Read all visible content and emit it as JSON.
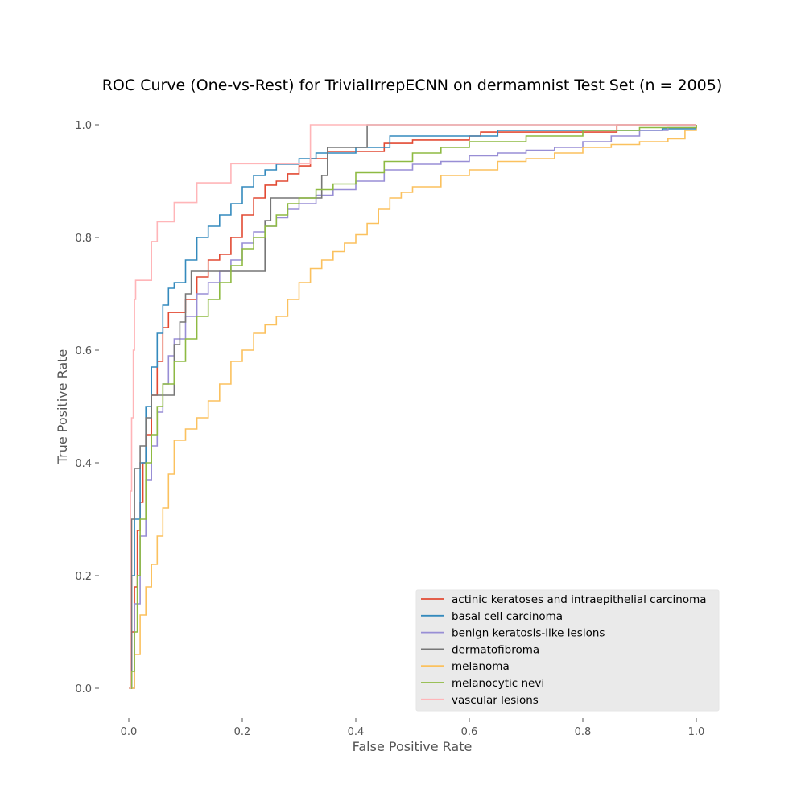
{
  "chart_data": {
    "type": "line",
    "title": "ROC Curve (One-vs-Rest) for TrivialIrrepECNN on dermamnist Test Set (n = 2005)",
    "xlabel": "False Positive Rate",
    "ylabel": "True Positive Rate",
    "xlim": [
      0.0,
      1.0
    ],
    "ylim": [
      0.0,
      1.0
    ],
    "xticks": [
      "0.0",
      "0.2",
      "0.4",
      "0.6",
      "0.8",
      "1.0"
    ],
    "yticks": [
      "0.0",
      "0.2",
      "0.4",
      "0.6",
      "0.8",
      "1.0"
    ],
    "grid": false,
    "legend_position": "lower-right",
    "series": [
      {
        "name": "actinic keratoses and intraepithelial carcinoma",
        "color": "#E24A33",
        "x": [
          0.0,
          0.005,
          0.01,
          0.015,
          0.02,
          0.025,
          0.03,
          0.04,
          0.05,
          0.06,
          0.07,
          0.09,
          0.1,
          0.12,
          0.14,
          0.16,
          0.18,
          0.2,
          0.22,
          0.24,
          0.26,
          0.28,
          0.3,
          0.32,
          0.35,
          0.4,
          0.45,
          0.5,
          0.6,
          0.62,
          0.7,
          0.86,
          0.86,
          1.0
        ],
        "y": [
          0.0,
          0.1,
          0.18,
          0.28,
          0.33,
          0.4,
          0.45,
          0.52,
          0.58,
          0.64,
          0.667,
          0.667,
          0.69,
          0.73,
          0.76,
          0.77,
          0.8,
          0.84,
          0.87,
          0.893,
          0.9,
          0.913,
          0.927,
          0.94,
          0.953,
          0.953,
          0.967,
          0.973,
          0.98,
          0.987,
          0.987,
          0.987,
          1.0,
          1.0
        ]
      },
      {
        "name": "basal cell carcinoma",
        "color": "#348ABD",
        "x": [
          0.0,
          0.005,
          0.01,
          0.02,
          0.03,
          0.04,
          0.05,
          0.06,
          0.07,
          0.08,
          0.1,
          0.12,
          0.14,
          0.16,
          0.18,
          0.2,
          0.22,
          0.24,
          0.26,
          0.3,
          0.33,
          0.4,
          0.46,
          0.65,
          0.86,
          0.94,
          1.0
        ],
        "y": [
          0.0,
          0.2,
          0.3,
          0.4,
          0.5,
          0.57,
          0.63,
          0.68,
          0.71,
          0.72,
          0.76,
          0.8,
          0.82,
          0.84,
          0.86,
          0.89,
          0.91,
          0.92,
          0.93,
          0.94,
          0.95,
          0.96,
          0.98,
          0.99,
          0.99,
          0.993,
          1.0
        ]
      },
      {
        "name": "benign keratosis-like lesions",
        "color": "#988ED5",
        "x": [
          0.0,
          0.01,
          0.02,
          0.03,
          0.04,
          0.05,
          0.06,
          0.07,
          0.08,
          0.1,
          0.12,
          0.14,
          0.16,
          0.18,
          0.2,
          0.22,
          0.24,
          0.26,
          0.28,
          0.3,
          0.33,
          0.36,
          0.4,
          0.45,
          0.5,
          0.55,
          0.6,
          0.65,
          0.7,
          0.75,
          0.8,
          0.85,
          0.9,
          0.95,
          1.0
        ],
        "y": [
          0.0,
          0.15,
          0.27,
          0.37,
          0.43,
          0.49,
          0.54,
          0.59,
          0.62,
          0.66,
          0.7,
          0.72,
          0.74,
          0.76,
          0.79,
          0.81,
          0.82,
          0.835,
          0.85,
          0.86,
          0.875,
          0.885,
          0.9,
          0.92,
          0.93,
          0.935,
          0.945,
          0.95,
          0.955,
          0.96,
          0.97,
          0.98,
          0.99,
          0.995,
          1.0
        ]
      },
      {
        "name": "dermatofibroma",
        "color": "#777777",
        "x": [
          0.0,
          0.005,
          0.01,
          0.02,
          0.03,
          0.04,
          0.06,
          0.08,
          0.09,
          0.1,
          0.11,
          0.23,
          0.24,
          0.25,
          0.3,
          0.33,
          0.34,
          0.35,
          0.42,
          0.42,
          1.0
        ],
        "y": [
          0.0,
          0.3,
          0.39,
          0.43,
          0.48,
          0.52,
          0.52,
          0.61,
          0.65,
          0.7,
          0.74,
          0.74,
          0.83,
          0.87,
          0.87,
          0.87,
          0.91,
          0.96,
          0.96,
          1.0,
          1.0
        ]
      },
      {
        "name": "melanoma",
        "color": "#FBC15E",
        "x": [
          0.0,
          0.01,
          0.02,
          0.03,
          0.04,
          0.05,
          0.06,
          0.07,
          0.08,
          0.1,
          0.12,
          0.14,
          0.16,
          0.18,
          0.2,
          0.22,
          0.24,
          0.26,
          0.28,
          0.3,
          0.32,
          0.34,
          0.36,
          0.38,
          0.4,
          0.42,
          0.44,
          0.46,
          0.48,
          0.5,
          0.55,
          0.6,
          0.65,
          0.7,
          0.75,
          0.8,
          0.85,
          0.9,
          0.95,
          0.98,
          1.0
        ],
        "y": [
          0.0,
          0.06,
          0.13,
          0.18,
          0.22,
          0.27,
          0.32,
          0.38,
          0.44,
          0.46,
          0.48,
          0.51,
          0.54,
          0.58,
          0.6,
          0.63,
          0.645,
          0.66,
          0.69,
          0.72,
          0.745,
          0.76,
          0.775,
          0.79,
          0.805,
          0.825,
          0.85,
          0.87,
          0.88,
          0.89,
          0.91,
          0.92,
          0.935,
          0.94,
          0.95,
          0.96,
          0.965,
          0.97,
          0.975,
          0.99,
          1.0
        ]
      },
      {
        "name": "melanocytic nevi",
        "color": "#8EBA42",
        "x": [
          0.0,
          0.005,
          0.01,
          0.015,
          0.02,
          0.03,
          0.04,
          0.05,
          0.06,
          0.08,
          0.1,
          0.12,
          0.14,
          0.16,
          0.18,
          0.2,
          0.22,
          0.24,
          0.26,
          0.28,
          0.3,
          0.33,
          0.36,
          0.4,
          0.45,
          0.5,
          0.55,
          0.6,
          0.7,
          0.8,
          0.9,
          1.0
        ],
        "y": [
          0.0,
          0.03,
          0.1,
          0.2,
          0.3,
          0.4,
          0.45,
          0.5,
          0.54,
          0.58,
          0.62,
          0.66,
          0.69,
          0.72,
          0.75,
          0.78,
          0.8,
          0.82,
          0.84,
          0.86,
          0.87,
          0.885,
          0.895,
          0.915,
          0.935,
          0.95,
          0.96,
          0.97,
          0.98,
          0.99,
          0.995,
          1.0
        ]
      },
      {
        "name": "vascular lesions",
        "color": "#FFB5B8",
        "x": [
          0.0,
          0.003,
          0.005,
          0.008,
          0.01,
          0.012,
          0.03,
          0.04,
          0.05,
          0.07,
          0.08,
          0.12,
          0.18,
          0.25,
          0.3,
          0.32,
          1.0
        ],
        "y": [
          0.0,
          0.35,
          0.48,
          0.6,
          0.69,
          0.724,
          0.724,
          0.793,
          0.828,
          0.828,
          0.862,
          0.897,
          0.931,
          0.931,
          0.931,
          1.0,
          1.0
        ]
      }
    ]
  }
}
